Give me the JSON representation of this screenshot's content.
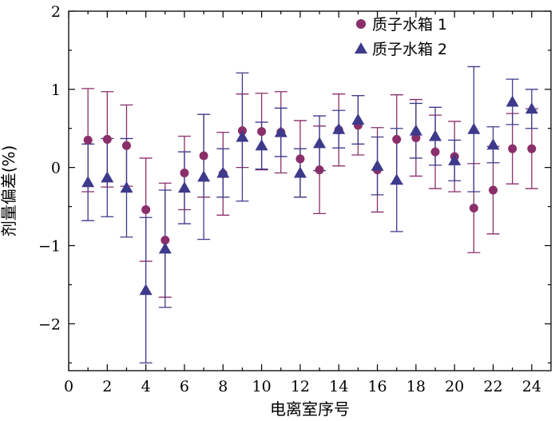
{
  "chart_data": {
    "type": "scatter",
    "xlabel": "电离室序号",
    "ylabel": "剂量偏差(%)",
    "xlim": [
      0,
      25
    ],
    "ylim": [
      -2.6,
      2
    ],
    "xticks": [
      0,
      2,
      4,
      6,
      8,
      10,
      12,
      14,
      16,
      18,
      20,
      22,
      24
    ],
    "yticks": [
      2,
      1,
      0,
      -1,
      -2
    ],
    "ytick_labels": [
      "2",
      "1",
      "0",
      "−1",
      "−2"
    ],
    "legend_position": "top-right",
    "series": [
      {
        "name": "质子水箱 1",
        "marker": "circle",
        "color": "#8a2f6a",
        "x": [
          1,
          2,
          3,
          4,
          5,
          6,
          7,
          8,
          9,
          10,
          11,
          12,
          13,
          14,
          15,
          16,
          17,
          18,
          19,
          20,
          21,
          22,
          23,
          24
        ],
        "y": [
          0.35,
          0.36,
          0.28,
          -0.54,
          -0.93,
          -0.07,
          0.15,
          -0.08,
          0.47,
          0.46,
          0.45,
          0.11,
          -0.03,
          0.48,
          0.54,
          -0.03,
          0.36,
          0.38,
          0.2,
          0.14,
          -0.52,
          -0.29,
          0.24,
          0.24
        ],
        "err": [
          0.66,
          0.61,
          0.52,
          0.66,
          0.73,
          0.47,
          0.53,
          0.53,
          0.47,
          0.49,
          0.52,
          0.49,
          0.56,
          0.46,
          0.38,
          0.54,
          0.57,
          0.49,
          0.47,
          0.45,
          0.57,
          0.56,
          0.45,
          0.51
        ]
      },
      {
        "name": "质子水箱 2",
        "marker": "triangle",
        "color": "#3d3a8c",
        "x": [
          1,
          2,
          3,
          4,
          5,
          6,
          7,
          8,
          9,
          10,
          11,
          12,
          13,
          14,
          15,
          16,
          17,
          18,
          19,
          20,
          21,
          22,
          23,
          24
        ],
        "y": [
          -0.19,
          -0.13,
          -0.26,
          -1.57,
          -1.04,
          -0.26,
          -0.12,
          -0.07,
          0.39,
          0.28,
          0.45,
          -0.07,
          0.31,
          0.49,
          0.61,
          0.02,
          -0.16,
          0.47,
          0.4,
          0.09,
          0.49,
          0.29,
          0.84,
          0.75
        ],
        "err": [
          0.49,
          0.5,
          0.63,
          0.93,
          0.75,
          0.46,
          0.8,
          0.31,
          0.82,
          0.3,
          0.31,
          0.31,
          0.35,
          0.24,
          0.31,
          0.37,
          0.66,
          0.35,
          0.37,
          0.26,
          0.8,
          0.23,
          0.29,
          0.25
        ]
      }
    ]
  }
}
